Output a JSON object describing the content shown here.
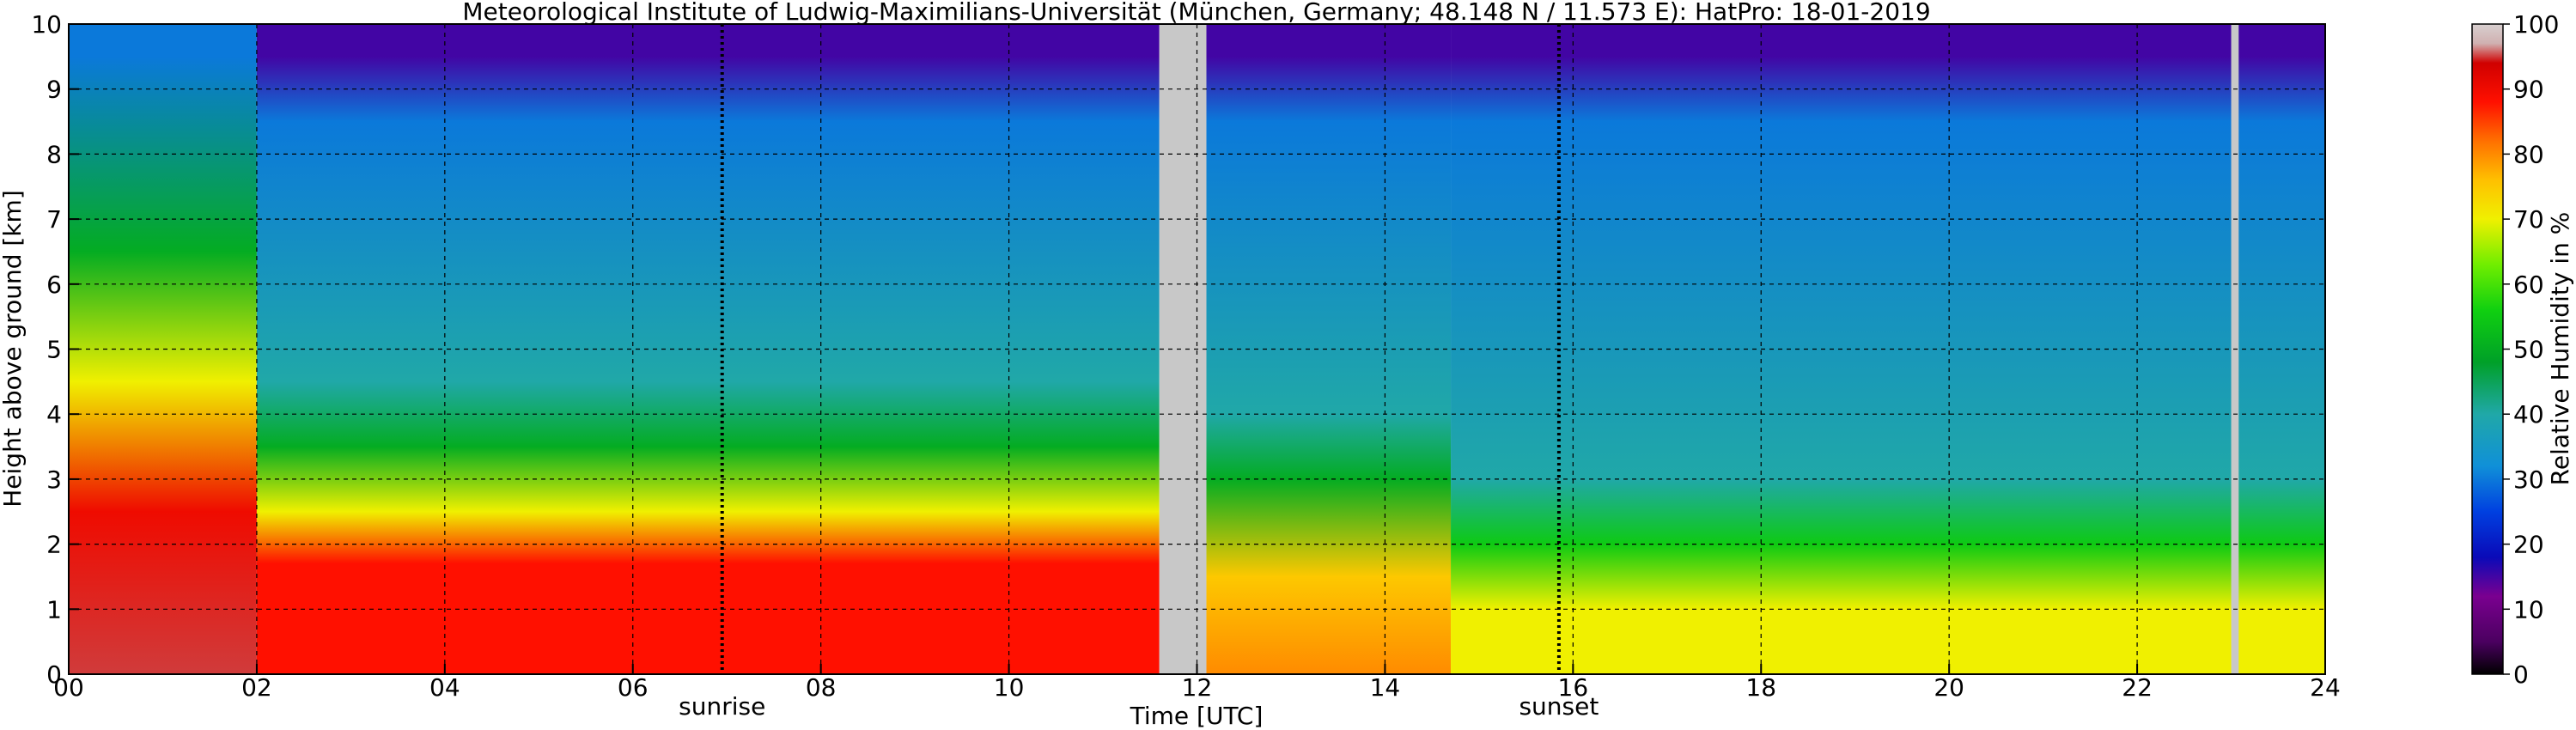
{
  "chart_data": {
    "type": "heatmap",
    "title": "Meteorological Institute of Ludwig-Maximilians-Universität (München, Germany; 48.148 N / 11.573 E):    HatPro: 18-01-2019",
    "xlabel": "Time [UTC]",
    "ylabel": "Height above ground [km]",
    "xlim": [
      0,
      24
    ],
    "ylim": [
      0,
      10
    ],
    "x_ticks": [
      "00",
      "02",
      "04",
      "06",
      "08",
      "10",
      "12",
      "14",
      "16",
      "18",
      "20",
      "22",
      "24"
    ],
    "y_ticks": [
      "0",
      "1",
      "2",
      "3",
      "4",
      "5",
      "6",
      "7",
      "8",
      "9",
      "10"
    ],
    "grid": true,
    "annotations": [
      {
        "label": "sunrise",
        "time": 6.95
      },
      {
        "label": "sunset",
        "time": 15.85
      }
    ],
    "missing_data_intervals": [
      [
        11.6,
        12.1
      ],
      [
        23.0,
        23.08
      ]
    ],
    "colorbar": {
      "label": "Relative Humidity in %",
      "range": [
        0,
        100
      ],
      "ticks": [
        "0",
        "10",
        "20",
        "30",
        "40",
        "50",
        "60",
        "70",
        "80",
        "90",
        "100"
      ]
    },
    "rh_profiles": [
      {
        "time_range": [
          0,
          2
        ],
        "surface_rh": 95,
        "layers": [
          {
            "height_km": 2.5,
            "rh": 90
          },
          {
            "height_km": 4.5,
            "rh": 70
          },
          {
            "height_km": 6.5,
            "rh": 50
          },
          {
            "height_km": 9.5,
            "rh": 30
          }
        ]
      },
      {
        "time_range": [
          2,
          11.6
        ],
        "surface_rh": 88,
        "layers": [
          {
            "height_km": 1.7,
            "rh": 88
          },
          {
            "height_km": 2.5,
            "rh": 70
          },
          {
            "height_km": 3.5,
            "rh": 50
          },
          {
            "height_km": 4.5,
            "rh": 40
          },
          {
            "height_km": 8.5,
            "rh": 30
          },
          {
            "height_km": 9.5,
            "rh": 15
          }
        ]
      },
      {
        "time_range": [
          12.1,
          14.7
        ],
        "surface_rh": 80,
        "layers": [
          {
            "height_km": 1.5,
            "rh": 75
          },
          {
            "height_km": 3,
            "rh": 50
          },
          {
            "height_km": 4,
            "rh": 40
          },
          {
            "height_km": 8.5,
            "rh": 30
          },
          {
            "height_km": 9.5,
            "rh": 15
          }
        ]
      },
      {
        "time_range": [
          14.7,
          24
        ],
        "surface_rh": 70,
        "layers": [
          {
            "height_km": 1,
            "rh": 70
          },
          {
            "height_km": 2,
            "rh": 55
          },
          {
            "height_km": 3,
            "rh": 40
          },
          {
            "height_km": 8.5,
            "rh": 30
          },
          {
            "height_km": 9.5,
            "rh": 15
          }
        ]
      }
    ]
  }
}
